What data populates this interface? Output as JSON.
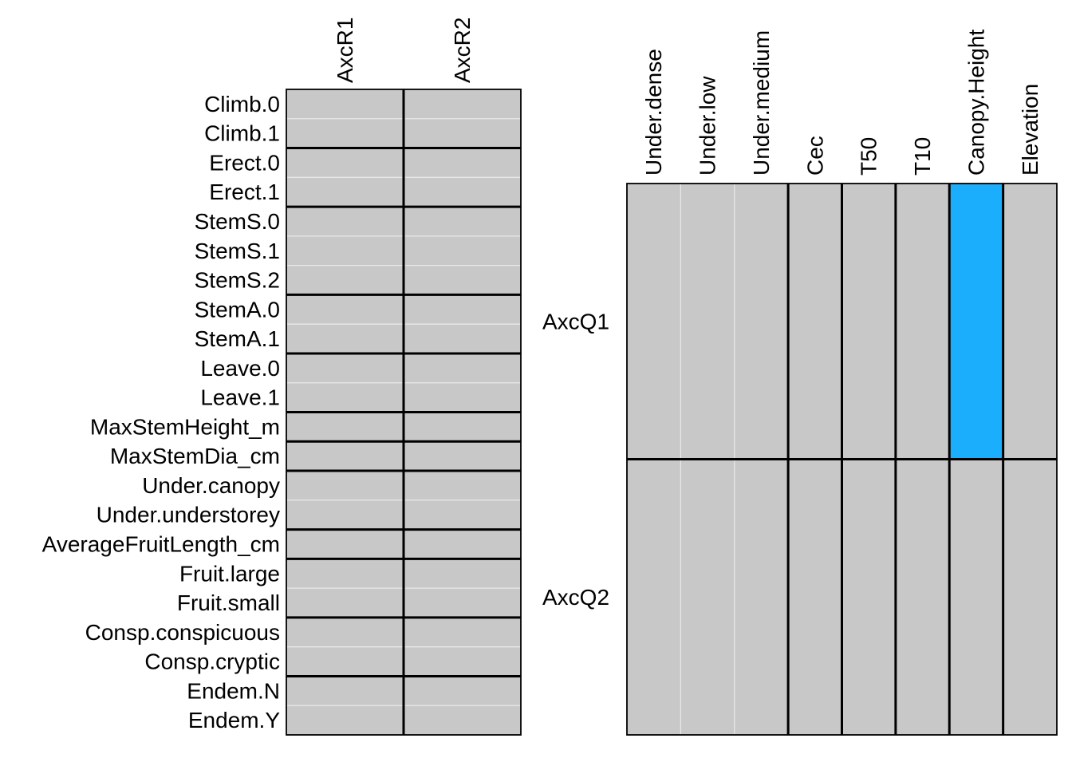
{
  "chart_data": [
    {
      "type": "heatmap",
      "title": "",
      "columns": [
        "AxcR1",
        "AxcR2"
      ],
      "rows": [
        "Climb.0",
        "Climb.1",
        "Erect.0",
        "Erect.1",
        "StemS.0",
        "StemS.1",
        "StemS.2",
        "StemA.0",
        "StemA.1",
        "Leave.0",
        "Leave.1",
        "MaxStemHeight_m",
        "MaxStemDia_cm",
        "Under.canopy",
        "Under.understorey",
        "AverageFruitLength_cm",
        "Fruit.large",
        "Fruit.small",
        "Consp.conspicuous",
        "Consp.cryptic",
        "Endem.N",
        "Endem.Y"
      ],
      "row_groups": [
        2,
        2,
        3,
        2,
        2,
        1,
        1,
        2,
        1,
        2,
        2,
        2
      ],
      "column_groups": [
        1,
        1
      ],
      "cells": [
        [
          0,
          0
        ],
        [
          0,
          0
        ],
        [
          0,
          0
        ],
        [
          0,
          0
        ],
        [
          0,
          0
        ],
        [
          0,
          0
        ],
        [
          0,
          0
        ],
        [
          0,
          0
        ],
        [
          0,
          0
        ],
        [
          0,
          0
        ],
        [
          0,
          0
        ],
        [
          0,
          0
        ],
        [
          0,
          0
        ],
        [
          0,
          0
        ],
        [
          0,
          0
        ],
        [
          0,
          0
        ],
        [
          0,
          0
        ],
        [
          0,
          0
        ],
        [
          0,
          0
        ],
        [
          0,
          0
        ],
        [
          0,
          0
        ],
        [
          0,
          0
        ]
      ],
      "legend": "none"
    },
    {
      "type": "heatmap",
      "title": "",
      "columns": [
        "Under.dense",
        "Under.low",
        "Under.medium",
        "Cec",
        "T50",
        "T10",
        "Canopy.Height",
        "Elevation"
      ],
      "rows": [
        "AxcQ1",
        "AxcQ2"
      ],
      "row_groups": [
        1,
        1
      ],
      "column_groups": [
        3,
        1,
        1,
        1,
        1,
        1
      ],
      "cells": [
        [
          0,
          0,
          0,
          0,
          0,
          0,
          1,
          0
        ],
        [
          0,
          0,
          0,
          0,
          0,
          0,
          0,
          0
        ]
      ],
      "legend": "none"
    }
  ],
  "colors": {
    "neutral": "#c8c8c8",
    "positive": "#1aaefc",
    "grid_minor": "#e8e8e8",
    "grid_major": "#000000"
  }
}
